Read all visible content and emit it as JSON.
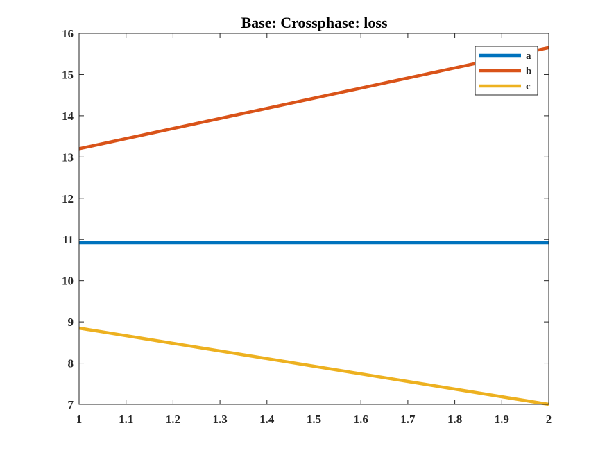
{
  "chart_data": {
    "type": "line",
    "title": "Base: Crossphase: loss",
    "xlabel": "",
    "ylabel": "",
    "xlim": [
      1,
      2
    ],
    "ylim": [
      7,
      16
    ],
    "xticks": [
      1,
      1.1,
      1.2,
      1.3,
      1.4,
      1.5,
      1.6,
      1.7,
      1.8,
      1.9,
      2
    ],
    "xtick_labels": [
      "1",
      "1.1",
      "1.2",
      "1.3",
      "1.4",
      "1.5",
      "1.6",
      "1.7",
      "1.8",
      "1.9",
      "2"
    ],
    "yticks": [
      7,
      8,
      9,
      10,
      11,
      12,
      13,
      14,
      15,
      16
    ],
    "ytick_labels": [
      "7",
      "8",
      "9",
      "10",
      "11",
      "12",
      "13",
      "14",
      "15",
      "16"
    ],
    "grid": false,
    "legend_position": "top-right",
    "series": [
      {
        "name": "a",
        "color": "#0072BD",
        "x": [
          1,
          2
        ],
        "y": [
          10.92,
          10.92
        ]
      },
      {
        "name": "b",
        "color": "#D95319",
        "x": [
          1,
          2
        ],
        "y": [
          13.2,
          15.65
        ]
      },
      {
        "name": "c",
        "color": "#EDB120",
        "x": [
          1,
          2
        ],
        "y": [
          8.85,
          7.0
        ]
      }
    ]
  }
}
